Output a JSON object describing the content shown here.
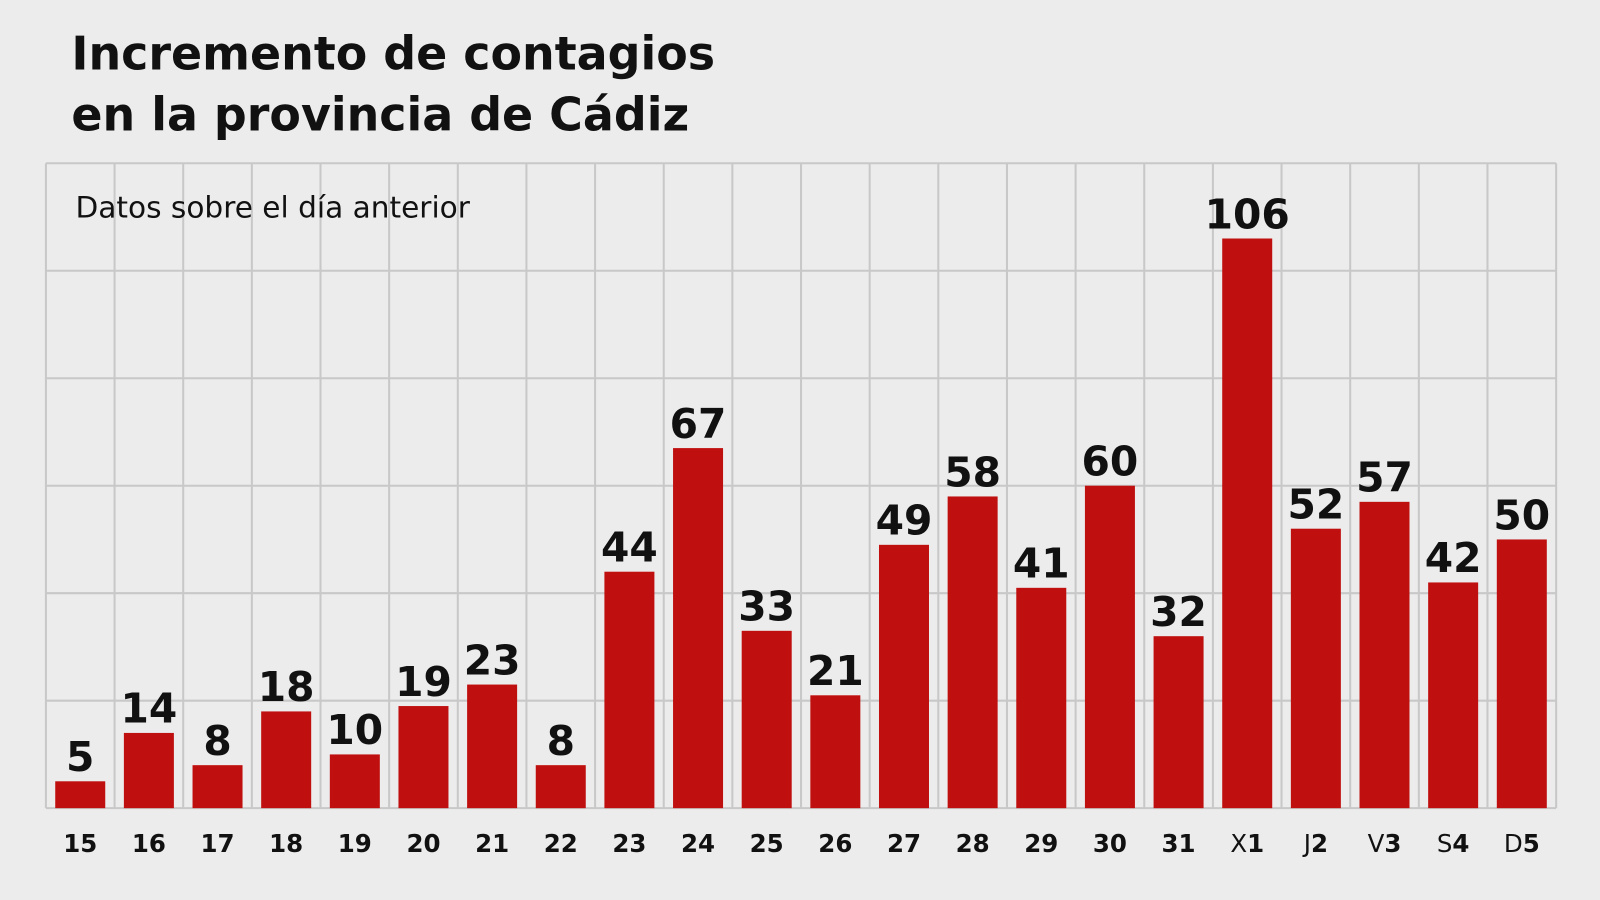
{
  "chart_data": {
    "type": "bar",
    "title_line1": "Incremento de contagios",
    "title_line2": "en la provincia de Cádiz",
    "subtitle": "Datos sobre el día anterior",
    "categories": [
      "15",
      "16",
      "17",
      "18",
      "19",
      "20",
      "21",
      "22",
      "23",
      "24",
      "25",
      "26",
      "27",
      "28",
      "29",
      "30",
      "31",
      "X1",
      "J2",
      "V3",
      "S4",
      "D5"
    ],
    "values": [
      5,
      14,
      8,
      18,
      10,
      19,
      23,
      8,
      44,
      67,
      33,
      21,
      49,
      58,
      41,
      60,
      32,
      106,
      52,
      57,
      42,
      50
    ],
    "ylim": [
      0,
      120
    ],
    "grid_step": 20,
    "grid": true,
    "bar_color": "#c00f0f",
    "grid_color": "#c8c8c8",
    "background": "#ececec"
  }
}
